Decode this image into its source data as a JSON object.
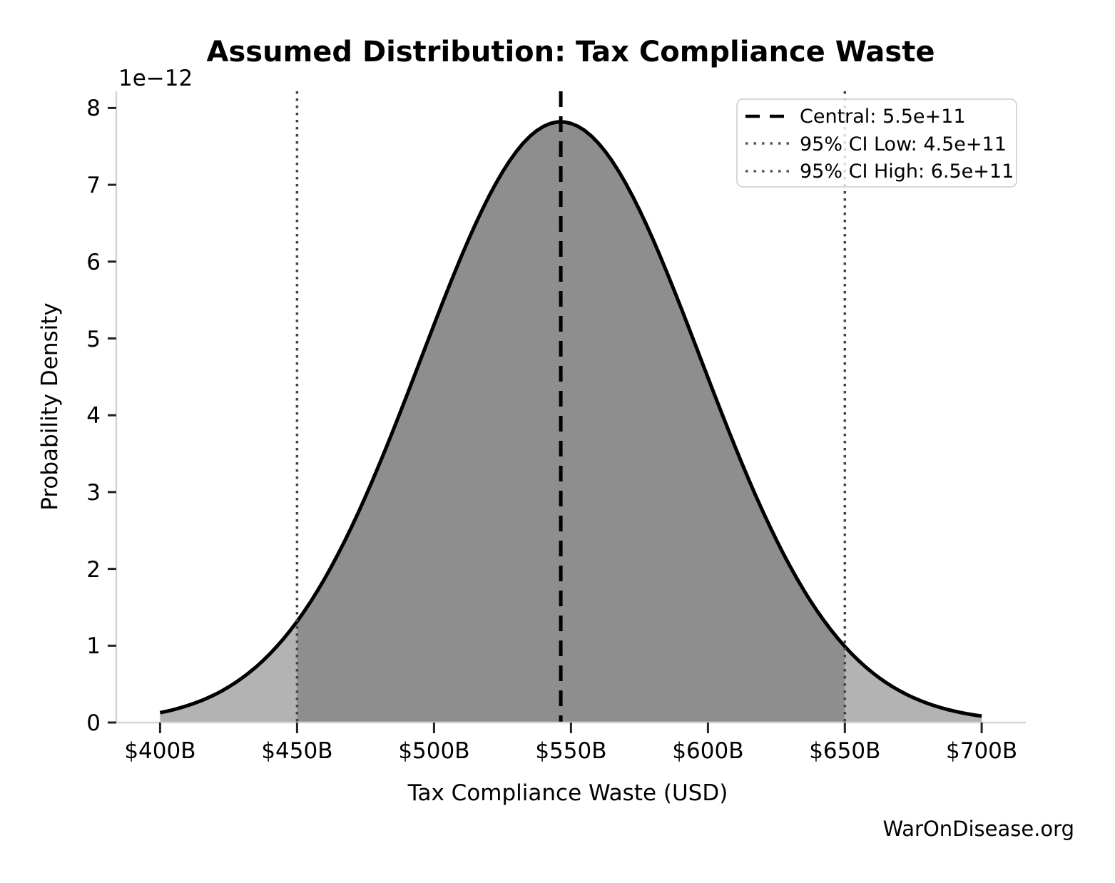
{
  "title": "Assumed Distribution: Tax Compliance Waste",
  "watermark": "WarOnDisease.org",
  "axes": {
    "x_label": "Tax Compliance Waste (USD)",
    "y_label": "Probability Density",
    "y_offset_label": "1e−12",
    "x_ticks": [
      "$400B",
      "$450B",
      "$500B",
      "$550B",
      "$600B",
      "$650B",
      "$700B"
    ],
    "y_ticks": [
      "0",
      "1",
      "2",
      "3",
      "4",
      "5",
      "6",
      "7",
      "8"
    ]
  },
  "legend": {
    "items": [
      {
        "label": "Central: 5.5e+11",
        "style": "dashed",
        "color": "#000000"
      },
      {
        "label": "95% CI Low: 4.5e+11",
        "style": "dotted",
        "color": "#555555"
      },
      {
        "label": "95% CI High: 6.5e+11",
        "style": "dotted",
        "color": "#555555"
      }
    ]
  },
  "colors": {
    "curve": "#000000",
    "central_line": "#000000",
    "ci_line": "#444444",
    "fill_central": "#8e8e8e",
    "fill_tail": "#b3b3b3",
    "spine": "#d6d6d6",
    "tick_mark": "#222222",
    "text": "#000000",
    "watermark": "#555555",
    "legend_border": "#cccccc",
    "legend_bg": "rgba(255,255,255,0.8)"
  },
  "chart_data": {
    "type": "area",
    "title": "Assumed Distribution: Tax Compliance Waste",
    "xlabel": "Tax Compliance Waste (USD)",
    "ylabel": "Probability Density",
    "y_scale_factor": "1e−12",
    "grid": false,
    "legend_position": "upper right",
    "x_tick_values_billions": [
      400,
      450,
      500,
      550,
      600,
      650,
      700
    ],
    "y_tick_values_e12": [
      0,
      1,
      2,
      3,
      4,
      5,
      6,
      7,
      8
    ],
    "xlim_billions": [
      384,
      714
    ],
    "ylim_e12": [
      0,
      8.217
    ],
    "central_value": "5.5e+11",
    "ci_low_value": "4.5e+11",
    "ci_high_value": "6.5e+11",
    "ci_low_billions": 450,
    "ci_high_billions": 650,
    "central_line_billions": 546.3,
    "curve": {
      "shape": "gaussian",
      "mean_billions": 546.3,
      "sigma_billions": 51,
      "peak_density_e12": 7.82,
      "range_billions": [
        400,
        700
      ]
    },
    "sampled_points": {
      "x_billions": [
        400,
        425,
        450,
        475,
        500,
        525,
        550,
        575,
        600,
        625,
        650,
        675,
        700
      ],
      "density_e12": [
        0.13,
        0.46,
        1.32,
        2.94,
        5.18,
        7.17,
        7.8,
        6.68,
        4.49,
        2.38,
        0.99,
        0.32,
        0.08
      ]
    }
  }
}
